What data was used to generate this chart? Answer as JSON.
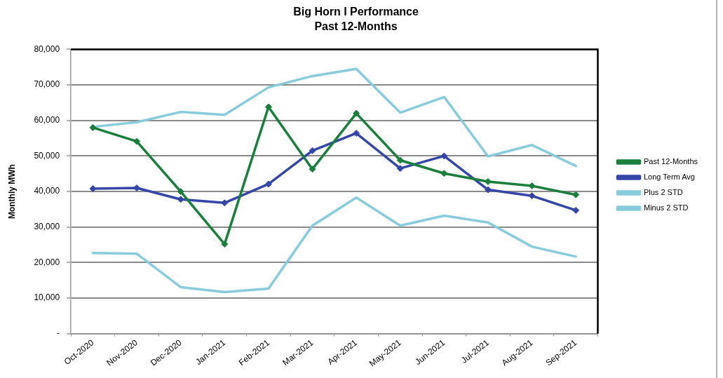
{
  "chart_data": {
    "type": "line",
    "title": "Big Horn I Performance",
    "subtitle": "Past 12-Months",
    "ylabel": "Monthly MWh",
    "categories": [
      "Oct-2020",
      "Nov-2020",
      "Dec-2020",
      "Jan-2021",
      "Feb-2021",
      "Mar-2021",
      "Apr-2021",
      "May-2021",
      "Jun-2021",
      "Jul-2021",
      "Aug-2021",
      "Sep-2021"
    ],
    "series": [
      {
        "name": "Past 12-Months",
        "color": "#1a7f3c",
        "marker": "diamond",
        "values": [
          58000,
          54100,
          40000,
          25200,
          63800,
          46300,
          62000,
          48800,
          45100,
          42800,
          41600,
          39100
        ]
      },
      {
        "name": "Long Term Avg",
        "color": "#3447a8",
        "marker": "diamond",
        "values": [
          40800,
          41000,
          37800,
          36800,
          42100,
          51500,
          56400,
          46500,
          50000,
          40500,
          38800,
          34700
        ]
      },
      {
        "name": "Plus 2 STD",
        "color": "#87cbdd",
        "marker": "none",
        "values": [
          58200,
          59500,
          62400,
          61600,
          69300,
          72500,
          74500,
          62200,
          66600,
          49900,
          53100,
          47200
        ]
      },
      {
        "name": "Minus 2 STD",
        "color": "#87cbdd",
        "marker": "none",
        "values": [
          22700,
          22500,
          13100,
          11700,
          12700,
          30400,
          38300,
          30400,
          33200,
          31300,
          24500,
          21700
        ]
      }
    ],
    "ylim": [
      0,
      80000
    ],
    "yticks": [
      {
        "value": 0,
        "label": "-"
      },
      {
        "value": 10000,
        "label": "10,000"
      },
      {
        "value": 20000,
        "label": "20,000"
      },
      {
        "value": 30000,
        "label": "30,000"
      },
      {
        "value": 40000,
        "label": "40,000"
      },
      {
        "value": 50000,
        "label": "50,000"
      },
      {
        "value": 60000,
        "label": "60,000"
      },
      {
        "value": 70000,
        "label": "70,000"
      },
      {
        "value": 80000,
        "label": "80,000"
      }
    ],
    "grid": "y",
    "legend": "right"
  }
}
